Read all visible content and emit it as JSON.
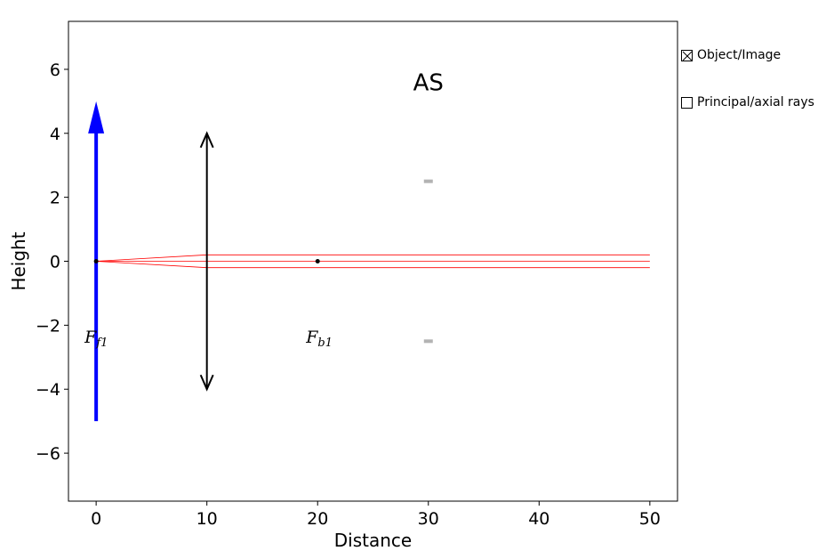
{
  "chart_data": {
    "type": "scatter",
    "xlabel": "Distance",
    "ylabel": "Height",
    "xlim": [
      -2.5,
      52.5
    ],
    "ylim": [
      -7.5,
      7.5
    ],
    "xticks": [
      0,
      10,
      20,
      30,
      40,
      50
    ],
    "yticks": [
      -6,
      -4,
      -2,
      0,
      2,
      4,
      6
    ],
    "xtick_labels": [
      "0",
      "10",
      "20",
      "30",
      "40",
      "50"
    ],
    "ytick_labels": [
      "−6",
      "−4",
      "−2",
      "0",
      "2",
      "4",
      "6"
    ],
    "grid": false,
    "object_arrow": {
      "x": 0,
      "y_from": -5,
      "y_to": 5,
      "color": "#0000ff"
    },
    "lens": {
      "x": 10,
      "y_from": -4,
      "y_to": 4,
      "color": "#000000"
    },
    "aperture_stop": {
      "x": 30,
      "half_height": 2.5,
      "color": "#b3b3b3",
      "label": "AS"
    },
    "focal_points": [
      {
        "x": 0,
        "y": 0,
        "label_main": "F",
        "label_sub": "f1"
      },
      {
        "x": 20,
        "y": 0,
        "label_main": "F",
        "label_sub": "b1"
      }
    ],
    "rays": {
      "color": "#ff0000",
      "series": [
        {
          "x": [
            0,
            10,
            50
          ],
          "y": [
            0,
            0.2,
            0.2
          ]
        },
        {
          "x": [
            0,
            10,
            50
          ],
          "y": [
            0,
            0,
            0
          ]
        },
        {
          "x": [
            0,
            10,
            50
          ],
          "y": [
            0,
            -0.2,
            -0.2
          ]
        }
      ]
    }
  },
  "controls": {
    "object_image": {
      "label": "Object/Image",
      "checked": true
    },
    "principal_axial_rays": {
      "label": "Principal/axial rays",
      "checked": false
    }
  }
}
